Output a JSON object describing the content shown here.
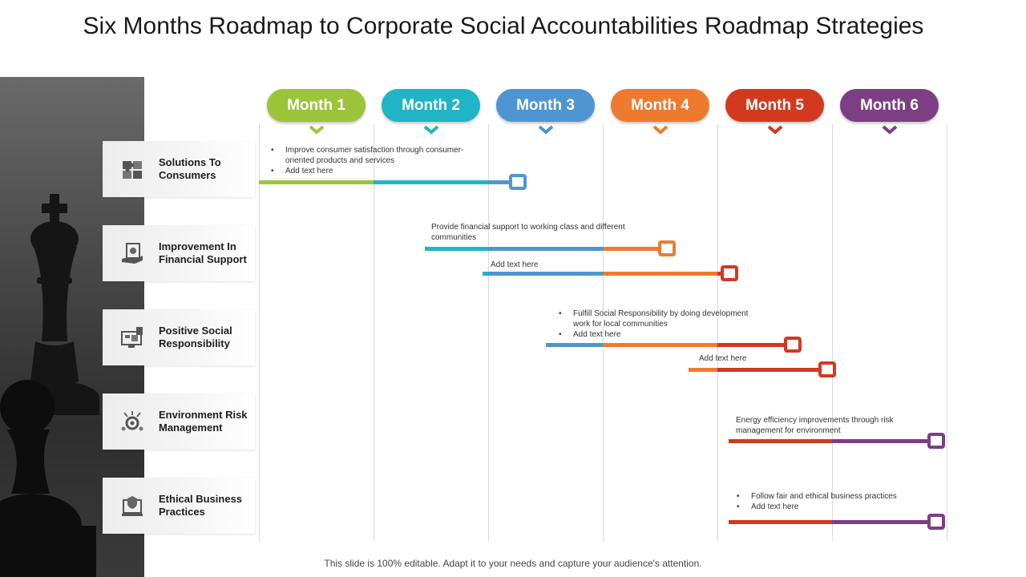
{
  "title": "Six Months Roadmap to Corporate Social Accountabilities Roadmap Strategies",
  "months": [
    "Month 1",
    "Month 2",
    "Month 3",
    "Month 4",
    "Month 5",
    "Month 6"
  ],
  "month_colors": [
    "#9cc43a",
    "#1fb5c6",
    "#4e96d1",
    "#ee7a30",
    "#d2391f",
    "#7c3f83"
  ],
  "categories": [
    {
      "label": "Solutions To\nConsumers",
      "icon": "puzzle-icon"
    },
    {
      "label": "Improvement In\nFinancial Support",
      "icon": "money-hand-icon"
    },
    {
      "label": "Positive Social\nResponsibility",
      "icon": "monitor-dashboard-icon"
    },
    {
      "label": "Environment Risk\nManagement",
      "icon": "gear-risk-icon"
    },
    {
      "label": "Ethical Business\nPractices",
      "icon": "document-shield-icon"
    }
  ],
  "annotations": [
    {
      "bullets": true,
      "lines": [
        "Improve consumer satisfaction through consumer-\noriented products and services",
        "Add text here"
      ]
    },
    {
      "bullets": false,
      "lines": [
        "Provide financial support to working class and different\ncommunities"
      ]
    },
    {
      "bullets": false,
      "lines": [
        "Add text here"
      ]
    },
    {
      "bullets": true,
      "lines": [
        "Fulfill Social Responsibility by doing development\nwork for local communities",
        "Add text here"
      ]
    },
    {
      "bullets": false,
      "lines": [
        "Add text here"
      ]
    },
    {
      "bullets": false,
      "lines": [
        "Energy efficiency improvements through risk\nmanagement  for environment"
      ]
    },
    {
      "bullets": true,
      "lines": [
        "Follow fair and ethical business practices",
        "Add text here"
      ]
    }
  ],
  "bars": [
    {
      "start_month": 1.0,
      "end_month": 3.25
    },
    {
      "start_month": 2.45,
      "end_month": 4.55
    },
    {
      "start_month": 2.95,
      "end_month": 5.1
    },
    {
      "start_month": 3.5,
      "end_month": 5.65
    },
    {
      "start_month": 4.75,
      "end_month": 5.95
    },
    {
      "start_month": 5.1,
      "end_month": 6.9
    },
    {
      "start_month": 5.1,
      "end_month": 6.9
    }
  ],
  "footer": "This slide is 100% editable. Adapt it to your needs and capture your audience's attention."
}
